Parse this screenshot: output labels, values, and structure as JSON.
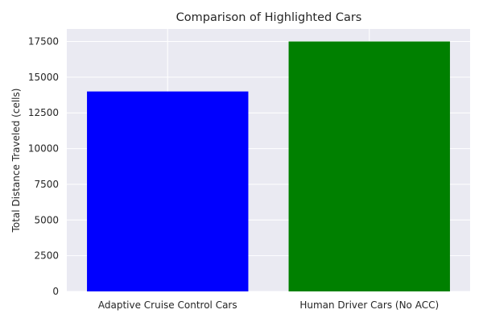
{
  "chart_data": {
    "type": "bar",
    "title": "Comparison of Highlighted Cars",
    "xlabel": "",
    "ylabel": "Total Distance Traveled (cells)",
    "categories": [
      "Adaptive Cruise Control Cars",
      "Human Driver Cars (No ACC)"
    ],
    "values": [
      14000,
      17500
    ],
    "colors": [
      "#0000ff",
      "#008000"
    ],
    "ylim": [
      0,
      18375
    ],
    "yticks": [
      0,
      2500,
      5000,
      7500,
      10000,
      12500,
      15000,
      17500
    ],
    "grid": true,
    "plot_background": "#eaeaf2",
    "grid_color": "#ffffff"
  }
}
